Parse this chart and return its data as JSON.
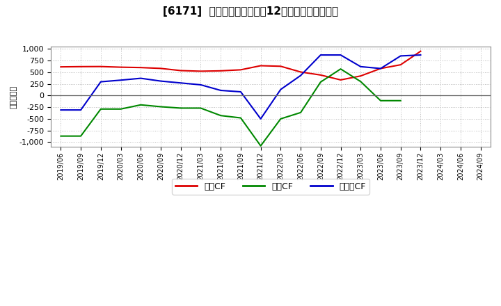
{
  "title": "[6171]  キャッシュフローの12か月移動合計の推移",
  "ylabel": "（百万円）",
  "ylim": [
    -1100,
    1050
  ],
  "yticks": [
    -1000,
    -750,
    -500,
    -250,
    0,
    250,
    500,
    750,
    1000
  ],
  "background_color": "#ffffff",
  "plot_bg_color": "#ffffff",
  "grid_color": "#aaaaaa",
  "x_labels": [
    "2019/06",
    "2019/09",
    "2019/12",
    "2020/03",
    "2020/06",
    "2020/09",
    "2020/12",
    "2021/03",
    "2021/06",
    "2021/09",
    "2021/12",
    "2022/03",
    "2022/06",
    "2022/09",
    "2022/12",
    "2023/03",
    "2023/06",
    "2023/09",
    "2023/12",
    "2024/03",
    "2024/06",
    "2024/09"
  ],
  "eigyo_cf": {
    "label": "営業CF",
    "color": "#dd0000",
    "data": [
      [
        0,
        615
      ],
      [
        1,
        620
      ],
      [
        2,
        622
      ],
      [
        3,
        608
      ],
      [
        4,
        600
      ],
      [
        5,
        582
      ],
      [
        6,
        535
      ],
      [
        7,
        522
      ],
      [
        8,
        530
      ],
      [
        9,
        552
      ],
      [
        10,
        640
      ],
      [
        11,
        628
      ],
      [
        12,
        505
      ],
      [
        13,
        440
      ],
      [
        14,
        335
      ],
      [
        15,
        420
      ],
      [
        16,
        580
      ],
      [
        17,
        660
      ],
      [
        18,
        950
      ]
    ]
  },
  "toshi_cf": {
    "label": "投資CF",
    "color": "#008800",
    "data": [
      [
        0,
        -870
      ],
      [
        1,
        -870
      ],
      [
        2,
        -290
      ],
      [
        3,
        -290
      ],
      [
        4,
        -200
      ],
      [
        5,
        -240
      ],
      [
        6,
        -270
      ],
      [
        7,
        -270
      ],
      [
        8,
        -430
      ],
      [
        9,
        -480
      ],
      [
        10,
        -1080
      ],
      [
        11,
        -500
      ],
      [
        12,
        -365
      ],
      [
        13,
        290
      ],
      [
        14,
        570
      ],
      [
        15,
        300
      ],
      [
        16,
        -110
      ],
      [
        17,
        -110
      ]
    ]
  },
  "free_cf": {
    "label": "フリーCF",
    "color": "#0000cc",
    "data": [
      [
        0,
        -310
      ],
      [
        1,
        -310
      ],
      [
        2,
        295
      ],
      [
        3,
        330
      ],
      [
        4,
        370
      ],
      [
        5,
        310
      ],
      [
        6,
        270
      ],
      [
        7,
        230
      ],
      [
        8,
        110
      ],
      [
        9,
        80
      ],
      [
        10,
        -500
      ],
      [
        11,
        130
      ],
      [
        12,
        430
      ],
      [
        13,
        870
      ],
      [
        14,
        870
      ],
      [
        15,
        620
      ],
      [
        16,
        580
      ],
      [
        17,
        850
      ],
      [
        18,
        870
      ]
    ]
  },
  "legend_entries": [
    "営業CF",
    "投資CF",
    "フリーCF"
  ],
  "legend_colors": [
    "#dd0000",
    "#008800",
    "#0000cc"
  ]
}
